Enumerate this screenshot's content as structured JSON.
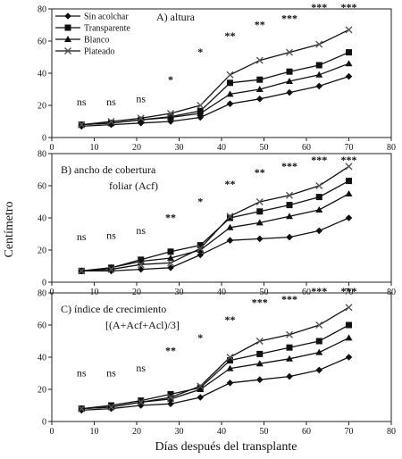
{
  "chart_data": {
    "type": "line",
    "xlabel": "Días después del transplante",
    "ylabel": "Centímetro",
    "xlim": [
      0,
      80
    ],
    "xticks": [
      0,
      10,
      20,
      30,
      40,
      50,
      60,
      70,
      80
    ],
    "ylim": [
      0,
      80
    ],
    "yticks": [
      0,
      20,
      40,
      60,
      80
    ],
    "legend": {
      "placement": "top-left",
      "entries": [
        "Sin acolchar",
        "Transparente",
        "Blanco",
        "Plateado"
      ]
    },
    "colors": {
      "line": "#111111",
      "plateado_marker": "#555555"
    },
    "x": [
      7,
      14,
      21,
      28,
      35,
      42,
      49,
      56,
      63,
      70
    ],
    "panels": [
      {
        "label": "A) altura",
        "label_line2": "",
        "significance": [
          {
            "x": 7,
            "y": 20,
            "text": "ns"
          },
          {
            "x": 14,
            "y": 20,
            "text": "ns"
          },
          {
            "x": 21,
            "y": 22,
            "text": "ns"
          },
          {
            "x": 28,
            "y": 34,
            "text": "*"
          },
          {
            "x": 35,
            "y": 51,
            "text": "*"
          },
          {
            "x": 42,
            "y": 61,
            "text": "**"
          },
          {
            "x": 49,
            "y": 68,
            "text": "**"
          },
          {
            "x": 56,
            "y": 72,
            "text": "***"
          },
          {
            "x": 63,
            "y": 79,
            "text": "***"
          },
          {
            "x": 70,
            "y": 79,
            "text": "***"
          }
        ],
        "series": [
          {
            "name": "Sin acolchar",
            "marker": "diamond",
            "values": [
              7,
              8,
              9,
              10,
              12.5,
              21,
              24,
              28,
              32,
              38
            ]
          },
          {
            "name": "Transparente",
            "marker": "square",
            "values": [
              8,
              9,
              11,
              13,
              16.5,
              34,
              36,
              41,
              45,
              53
            ]
          },
          {
            "name": "Blanco",
            "marker": "triangle",
            "values": [
              8,
              9,
              11,
              12.5,
              15,
              27,
              30,
              35,
              39,
              46
            ]
          },
          {
            "name": "Plateado",
            "marker": "x",
            "values": [
              8,
              10,
              12,
              15,
              20,
              39,
              48,
              53,
              58,
              67
            ]
          }
        ]
      },
      {
        "label": "B) ancho de cobertura",
        "label_line2": "foliar (Acf)",
        "significance": [
          {
            "x": 7,
            "y": 26,
            "text": "ns"
          },
          {
            "x": 14,
            "y": 27,
            "text": "ns"
          },
          {
            "x": 21,
            "y": 30,
            "text": "ns"
          },
          {
            "x": 28,
            "y": 38,
            "text": "**"
          },
          {
            "x": 35,
            "y": 48,
            "text": "*"
          },
          {
            "x": 42,
            "y": 59,
            "text": "**"
          },
          {
            "x": 49,
            "y": 66,
            "text": "**"
          },
          {
            "x": 56,
            "y": 70,
            "text": "***"
          },
          {
            "x": 63,
            "y": 74,
            "text": "***"
          },
          {
            "x": 70,
            "y": 74,
            "text": "***"
          }
        ],
        "series": [
          {
            "name": "Sin acolchar",
            "marker": "diamond",
            "values": [
              7,
              7,
              8,
              9,
              17,
              26,
              27,
              28,
              32,
              40
            ]
          },
          {
            "name": "Transparente",
            "marker": "square",
            "values": [
              7,
              9,
              14,
              19,
              23,
              40,
              44,
              48,
              53,
              63
            ]
          },
          {
            "name": "Blanco",
            "marker": "triangle",
            "values": [
              7,
              9,
              13,
              15,
              20,
              34,
              37,
              41,
              45,
              55
            ]
          },
          {
            "name": "Plateado",
            "marker": "x",
            "values": [
              7,
              8,
              11,
              12,
              21,
              41,
              50,
              54,
              60,
              72
            ]
          }
        ]
      },
      {
        "label": "C) índice de crecimiento",
        "label_line2": "[(A+Acf+Acl)/3]",
        "significance": [
          {
            "x": 7,
            "y": 28,
            "text": "ns"
          },
          {
            "x": 14,
            "y": 28,
            "text": "ns"
          },
          {
            "x": 21,
            "y": 31,
            "text": "ns"
          },
          {
            "x": 28,
            "y": 42,
            "text": "**"
          },
          {
            "x": 35,
            "y": 50,
            "text": "*"
          },
          {
            "x": 42,
            "y": 61,
            "text": "**"
          },
          {
            "x": 49,
            "y": 72,
            "text": "***"
          },
          {
            "x": 56,
            "y": 74,
            "text": "***"
          },
          {
            "x": 63,
            "y": 79,
            "text": "***"
          },
          {
            "x": 70,
            "y": 79,
            "text": "***"
          }
        ],
        "series": [
          {
            "name": "Sin acolchar",
            "marker": "diamond",
            "values": [
              7,
              8,
              10,
              11,
              15,
              24,
              26,
              28,
              32,
              40
            ]
          },
          {
            "name": "Transparente",
            "marker": "square",
            "values": [
              8,
              10,
              13,
              17,
              21,
              38,
              42,
              46,
              50,
              60
            ]
          },
          {
            "name": "Blanco",
            "marker": "triangle",
            "values": [
              8,
              9,
              12,
              14,
              20,
              33,
              36,
              39,
              43,
              52
            ]
          },
          {
            "name": "Plateado",
            "marker": "x",
            "values": [
              8,
              9,
              12,
              15,
              22,
              40,
              50,
              54,
              60,
              71
            ]
          }
        ]
      }
    ]
  }
}
